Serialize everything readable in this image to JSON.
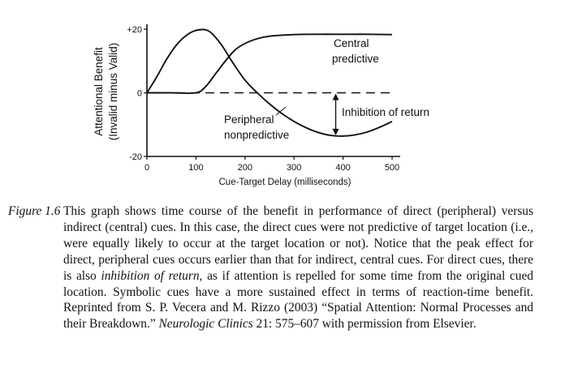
{
  "chart_data": {
    "type": "line",
    "y_axis_title": [
      "Attentional Benefit",
      "(Invalid minus Valid)"
    ],
    "xlabel": "Cue-Target Delay (milliseconds)",
    "xlim": [
      0,
      500
    ],
    "ylim": [
      -20,
      20
    ],
    "x_ticks": [
      0,
      100,
      200,
      300,
      400,
      500
    ],
    "x_tick_labels": [
      "0",
      "100",
      "200",
      "300",
      "400",
      "500"
    ],
    "y_ticks": [
      20,
      0,
      -20
    ],
    "y_tick_labels": [
      "+20",
      "0",
      "-20"
    ],
    "series": [
      {
        "name": "Central predictive",
        "label_lines": [
          "Central",
          "predictive"
        ],
        "style": "solid",
        "x": [
          0,
          50,
          100,
          120,
          140,
          160,
          180,
          200,
          225,
          250,
          300,
          350,
          400,
          450,
          500
        ],
        "y": [
          0,
          0,
          0,
          2,
          6,
          10,
          13.5,
          15.5,
          17,
          17.8,
          18.3,
          18.4,
          18.4,
          18.4,
          18.3
        ]
      },
      {
        "name": "Peripheral nonpredictive",
        "label_lines": [
          "Peripheral",
          "nonpredictive"
        ],
        "style": "solid",
        "x": [
          0,
          20,
          40,
          60,
          80,
          100,
          125,
          150,
          175,
          200,
          225,
          250,
          275,
          300,
          325,
          350,
          375,
          400,
          425,
          450,
          475,
          500
        ],
        "y": [
          0,
          5,
          10.5,
          15,
          18,
          19.6,
          19.5,
          15.5,
          9.5,
          4,
          0,
          -3.5,
          -6.5,
          -9,
          -11,
          -12.5,
          -13.4,
          -13.6,
          -13.2,
          -12.3,
          -10.8,
          -9
        ]
      },
      {
        "name": "Baseline",
        "style": "dashed",
        "x": [
          0,
          500
        ],
        "y": [
          0,
          0
        ]
      }
    ],
    "annotations": [
      {
        "text": "Inhibition of return",
        "type": "double-arrow",
        "x": 385,
        "y_from": 0,
        "y_to": -13.6
      }
    ]
  },
  "caption": {
    "label": "Figure 1.6",
    "text_before_em": "This graph shows time course of the benefit in performance of direct (peripheral) versus indirect (central) cues. In this case, the direct cues were not predictive of target location (i.e., were equally likely to occur at the target location or not). Notice that the peak effect for direct, peripheral cues occurs earlier than that for indirect, central cues. For direct cues, there is also ",
    "em": "inhibition of return",
    "text_after_em": ", as if attention is repelled for some time from the original cued location. Symbolic cues have a more sustained effect in terms of reaction-time benefit. Reprinted from S. P. Vecera and M. Rizzo (2003) “Spatial Attention: Normal Processes and their Breakdown.”",
    "source_journal": "Neurologic Clinics",
    "source_rest": " 21: 575–607 with permission from Elsevier."
  }
}
